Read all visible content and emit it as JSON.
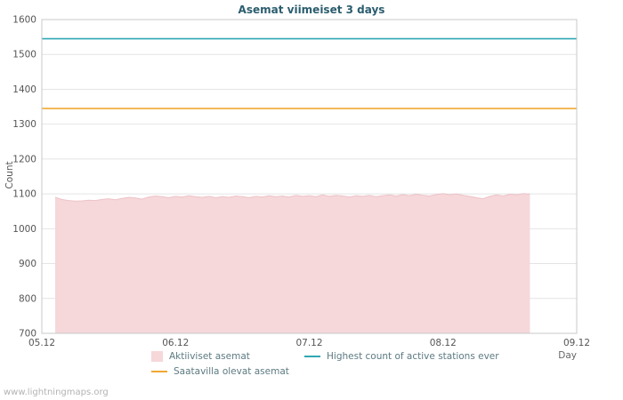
{
  "watermark": "www.lightningmaps.org",
  "chart_data": {
    "type": "area",
    "title": "Asemat viimeiset 3 days",
    "xlabel": "Day",
    "ylabel": "Count",
    "ylim": [
      700,
      1600
    ],
    "ytick_step": 100,
    "xlim": [
      0,
      4
    ],
    "xticks": [
      {
        "pos": 0,
        "label": "05.12"
      },
      {
        "pos": 1,
        "label": "06.12"
      },
      {
        "pos": 2,
        "label": "07.12"
      },
      {
        "pos": 3,
        "label": "08.12"
      },
      {
        "pos": 4,
        "label": "09.12"
      }
    ],
    "grid": "horizontal",
    "legend_position": "bottom",
    "colors": {
      "grid": "#e4e4e4",
      "border": "#c8c8c8",
      "tick_text": "#555555",
      "title": "#2b5d6e"
    },
    "series": [
      {
        "name": "Aktiiviset asemat",
        "type": "area",
        "fill": "#f6d7da",
        "edge": "#edc2c7",
        "baseline": 700,
        "points": [
          [
            0.1,
            1090
          ],
          [
            0.15,
            1084
          ],
          [
            0.2,
            1081
          ],
          [
            0.25,
            1079
          ],
          [
            0.3,
            1080
          ],
          [
            0.35,
            1082
          ],
          [
            0.4,
            1081
          ],
          [
            0.45,
            1084
          ],
          [
            0.5,
            1086
          ],
          [
            0.55,
            1083
          ],
          [
            0.6,
            1087
          ],
          [
            0.65,
            1090
          ],
          [
            0.7,
            1088
          ],
          [
            0.75,
            1085
          ],
          [
            0.8,
            1091
          ],
          [
            0.85,
            1094
          ],
          [
            0.9,
            1092
          ],
          [
            0.95,
            1089
          ],
          [
            1.0,
            1093
          ],
          [
            1.05,
            1091
          ],
          [
            1.1,
            1095
          ],
          [
            1.15,
            1092
          ],
          [
            1.2,
            1090
          ],
          [
            1.25,
            1093
          ],
          [
            1.3,
            1089
          ],
          [
            1.35,
            1092
          ],
          [
            1.4,
            1090
          ],
          [
            1.45,
            1094
          ],
          [
            1.5,
            1092
          ],
          [
            1.55,
            1089
          ],
          [
            1.6,
            1093
          ],
          [
            1.65,
            1091
          ],
          [
            1.7,
            1095
          ],
          [
            1.75,
            1092
          ],
          [
            1.8,
            1094
          ],
          [
            1.85,
            1091
          ],
          [
            1.9,
            1096
          ],
          [
            1.95,
            1093
          ],
          [
            2.0,
            1095
          ],
          [
            2.05,
            1092
          ],
          [
            2.1,
            1097
          ],
          [
            2.15,
            1093
          ],
          [
            2.2,
            1096
          ],
          [
            2.25,
            1094
          ],
          [
            2.3,
            1091
          ],
          [
            2.35,
            1095
          ],
          [
            2.4,
            1093
          ],
          [
            2.45,
            1096
          ],
          [
            2.5,
            1092
          ],
          [
            2.55,
            1095
          ],
          [
            2.6,
            1097
          ],
          [
            2.65,
            1094
          ],
          [
            2.7,
            1098
          ],
          [
            2.75,
            1095
          ],
          [
            2.8,
            1099
          ],
          [
            2.85,
            1096
          ],
          [
            2.9,
            1094
          ],
          [
            2.95,
            1098
          ],
          [
            3.0,
            1101
          ],
          [
            3.05,
            1097
          ],
          [
            3.1,
            1100
          ],
          [
            3.15,
            1096
          ],
          [
            3.2,
            1093
          ],
          [
            3.25,
            1089
          ],
          [
            3.3,
            1086
          ],
          [
            3.35,
            1093
          ],
          [
            3.4,
            1097
          ],
          [
            3.45,
            1094
          ],
          [
            3.5,
            1099
          ],
          [
            3.55,
            1097
          ],
          [
            3.6,
            1101
          ],
          [
            3.65,
            1099
          ]
        ]
      },
      {
        "name": "Saatavilla olevat asemat",
        "type": "hline",
        "value": 1345,
        "color": "#f0a832"
      },
      {
        "name": "Highest count of active stations ever",
        "type": "hline",
        "value": 1545,
        "color": "#2fa7b4"
      }
    ]
  },
  "legend": {
    "items": [
      {
        "label": "Aktiiviset asemat",
        "swatch": "area",
        "color": "#f6d7da"
      },
      {
        "label": "Highest count of active stations ever",
        "swatch": "line",
        "color": "#2fa7b4"
      },
      {
        "label": "Saatavilla olevat asemat",
        "swatch": "line",
        "color": "#f0a832"
      }
    ]
  }
}
